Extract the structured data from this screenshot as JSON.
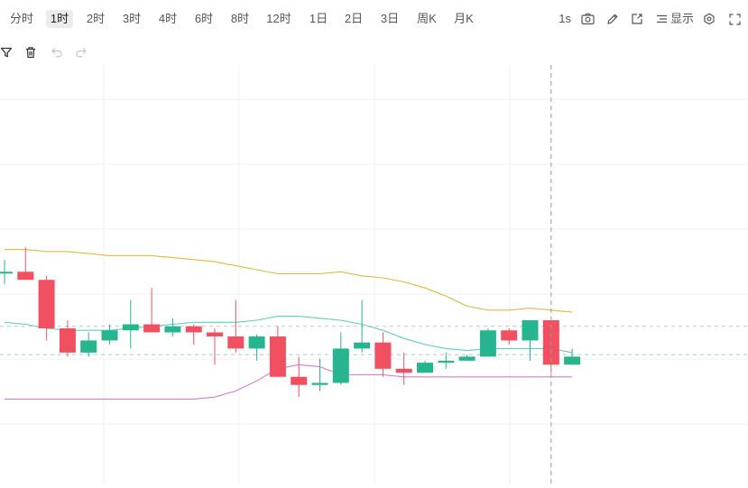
{
  "toolbar": {
    "timeframes": [
      "分时",
      "1时",
      "2时",
      "3时",
      "4时",
      "6时",
      "8时",
      "12时",
      "1日",
      "2日",
      "3日",
      "周K",
      "月K"
    ],
    "active_timeframe": "1时",
    "interval_label": "1s",
    "display_label": "显示"
  },
  "icons": [
    "filter-icon",
    "trash-icon",
    "undo-icon",
    "redo-icon",
    "camera-icon",
    "pencil-icon",
    "external-window-icon",
    "list-icon",
    "settings-icon",
    "fullscreen-icon"
  ],
  "colors": {
    "up": "#26b58f",
    "down": "#f0505f",
    "boll_upper": "#e9b53a",
    "boll_mid": "#5fd0b9",
    "boll_lower": "#d77bc9",
    "grid": "#f2f2f2",
    "crosshair": "#9a9a9a"
  },
  "chart_data": {
    "type": "candlestick",
    "y_range": [
      0,
      100
    ],
    "candles": [
      {
        "o": 51.5,
        "h": 54.5,
        "l": 48.5,
        "c": 51.5
      },
      {
        "o": 51.5,
        "h": 57.5,
        "l": 49.5,
        "c": 49.5
      },
      {
        "o": 49.5,
        "h": 50.5,
        "l": 34.5,
        "c": 37.5
      },
      {
        "o": 37.5,
        "h": 39.5,
        "l": 30.5,
        "c": 31.5
      },
      {
        "o": 31.5,
        "h": 36.5,
        "l": 30.5,
        "c": 34.5
      },
      {
        "o": 34.5,
        "h": 38.5,
        "l": 33.5,
        "c": 37.0
      },
      {
        "o": 37.0,
        "h": 44.5,
        "l": 32.5,
        "c": 38.5
      },
      {
        "o": 38.5,
        "h": 47.5,
        "l": 36.5,
        "c": 36.5
      },
      {
        "o": 36.5,
        "h": 40.0,
        "l": 35.5,
        "c": 38.0
      },
      {
        "o": 38.0,
        "h": 38.5,
        "l": 33.5,
        "c": 36.5
      },
      {
        "o": 36.5,
        "h": 37.5,
        "l": 28.5,
        "c": 35.5
      },
      {
        "o": 35.5,
        "h": 44.5,
        "l": 31.5,
        "c": 32.5
      },
      {
        "o": 32.5,
        "h": 36.0,
        "l": 29.5,
        "c": 35.5
      },
      {
        "o": 35.5,
        "h": 38.0,
        "l": 25.5,
        "c": 25.5
      },
      {
        "o": 25.5,
        "h": 30.5,
        "l": 20.5,
        "c": 23.5
      },
      {
        "o": 23.5,
        "h": 30.0,
        "l": 22.0,
        "c": 24.0
      },
      {
        "o": 24.0,
        "h": 36.5,
        "l": 23.5,
        "c": 32.5
      },
      {
        "o": 32.5,
        "h": 44.5,
        "l": 31.5,
        "c": 34.0
      },
      {
        "o": 34.0,
        "h": 36.5,
        "l": 25.5,
        "c": 27.5
      },
      {
        "o": 27.5,
        "h": 31.5,
        "l": 23.5,
        "c": 26.5
      },
      {
        "o": 26.5,
        "h": 29.5,
        "l": 26.5,
        "c": 29.0
      },
      {
        "o": 29.0,
        "h": 31.5,
        "l": 27.5,
        "c": 29.5
      },
      {
        "o": 29.5,
        "h": 31.0,
        "l": 29.5,
        "c": 30.5
      },
      {
        "o": 30.5,
        "h": 37.5,
        "l": 30.5,
        "c": 37.0
      },
      {
        "o": 37.0,
        "h": 37.5,
        "l": 33.5,
        "c": 34.5
      },
      {
        "o": 34.5,
        "h": 39.5,
        "l": 29.5,
        "c": 39.5
      },
      {
        "o": 39.5,
        "h": 39.5,
        "l": 26.5,
        "c": 28.5
      },
      {
        "o": 28.5,
        "h": 32.5,
        "l": 28.5,
        "c": 30.5
      }
    ],
    "boll_upper": [
      57,
      57,
      56.5,
      56.5,
      56,
      55.5,
      55.5,
      55.5,
      55,
      54.5,
      54,
      53,
      52,
      51,
      51,
      51,
      51.5,
      50.5,
      50,
      49,
      47.5,
      45.5,
      43,
      42,
      42,
      42.5,
      42,
      41.5
    ],
    "boll_mid": [
      39,
      38.5,
      37.5,
      37,
      37,
      37,
      37.5,
      38,
      38.5,
      39,
      39,
      39,
      39.5,
      40.5,
      40.5,
      40,
      39.5,
      38.5,
      37,
      35,
      33.5,
      32.5,
      32,
      32.5,
      32.5,
      32.5,
      32.5,
      31.5
    ],
    "boll_lower": [
      20,
      20,
      20,
      20,
      20,
      20,
      20,
      20,
      20,
      20,
      20.5,
      22,
      24.5,
      27.5,
      28.5,
      28,
      26,
      26,
      26,
      25.5,
      25.5,
      25.5,
      25.5,
      25.5,
      25.5,
      25.5,
      25.5,
      25.5
    ],
    "reference_lines": [
      38,
      31
    ],
    "crosshair_index": 26,
    "grid": true
  }
}
